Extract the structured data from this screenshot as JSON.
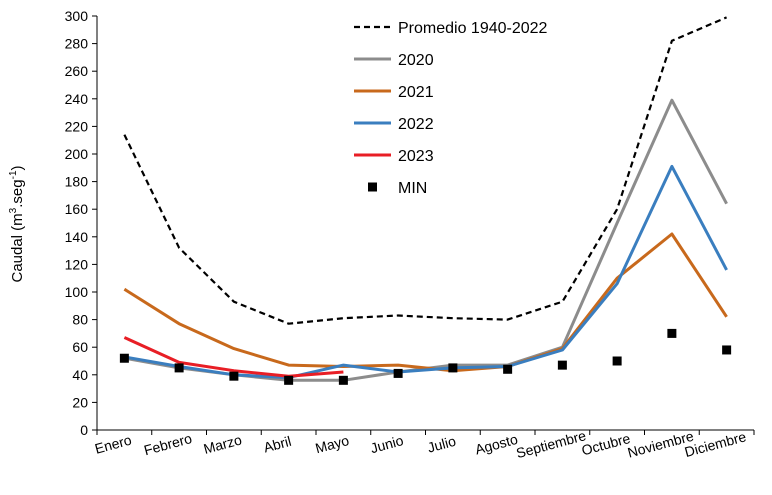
{
  "chart_data": {
    "type": "line",
    "ylabel": "Caudal  (m3.seg-1)",
    "ylabel_parts": {
      "main": "Caudal  (m",
      "sup1": "3",
      "mid": ".seg",
      "sup2": "-1",
      "end": ")"
    },
    "ylim": [
      0,
      300
    ],
    "yticks": [
      "0",
      "20",
      "40",
      "60",
      "80",
      "100",
      "120",
      "140",
      "160",
      "180",
      "200",
      "220",
      "240",
      "260",
      "280",
      "300"
    ],
    "categories": [
      "Enero",
      "Febrero",
      "Marzo",
      "Abril",
      "Mayo",
      "Junio",
      "Julio",
      "Agosto",
      "Septiembre",
      "Octubre",
      "Noviembre",
      "Diciembre"
    ],
    "grid": false,
    "legend_position": "top-center",
    "series": [
      {
        "name": "Promedio 1940-2022",
        "style": "dashed",
        "color": "#000000",
        "values": [
          214,
          132,
          93,
          77,
          81,
          83,
          81,
          80,
          93,
          160,
          282,
          299
        ]
      },
      {
        "name": "2020",
        "style": "line",
        "color": "#8c8c8c",
        "values": [
          52,
          45,
          40,
          36,
          36,
          42,
          47,
          47,
          60,
          150,
          239,
          164
        ]
      },
      {
        "name": "2021",
        "style": "line",
        "color": "#c8691c",
        "values": [
          102,
          77,
          59,
          47,
          46,
          47,
          43,
          46,
          59,
          110,
          142,
          82
        ]
      },
      {
        "name": "2022",
        "style": "line",
        "color": "#3a7ebf",
        "values": [
          53,
          46,
          40,
          38,
          47,
          42,
          45,
          46,
          58,
          106,
          191,
          116
        ]
      },
      {
        "name": "2023",
        "style": "line",
        "color": "#e81e25",
        "values": [
          67,
          49,
          43,
          39,
          42,
          null,
          null,
          null,
          null,
          null,
          null,
          null
        ]
      },
      {
        "name": "MIN",
        "style": "marker",
        "color": "#000000",
        "values": [
          52,
          45,
          39,
          36,
          36,
          41,
          45,
          44,
          47,
          50,
          70,
          58
        ]
      }
    ]
  }
}
